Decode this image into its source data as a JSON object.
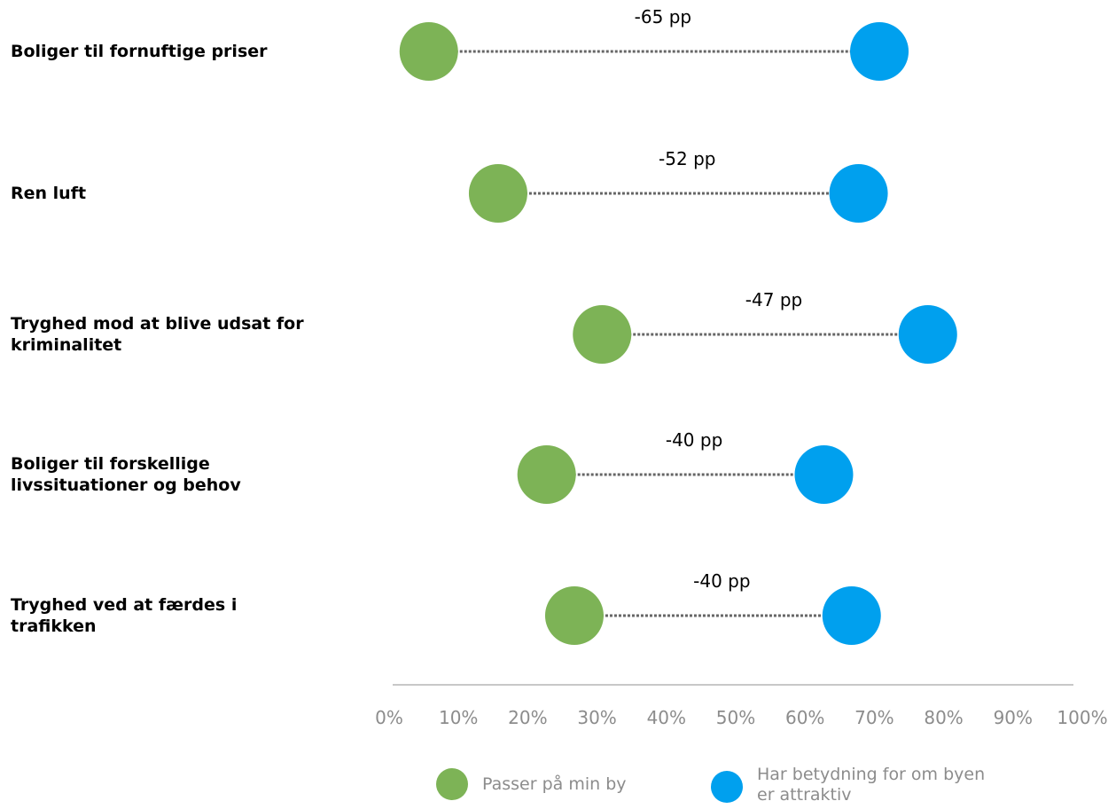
{
  "chart_data": {
    "type": "dumbbell",
    "categories": [
      "Boliger til fornuftige priser",
      "Ren luft",
      "Tryghed mod at blive udsat for kriminalitet",
      "Boliger til forskellige livssituationer og behov",
      "Tryghed ved at færdes i trafikken"
    ],
    "series": [
      {
        "name": "Passer på min by",
        "color": "#7db356",
        "values": [
          7,
          17,
          32,
          24,
          28
        ]
      },
      {
        "name": "Har betydning for om byen er attraktiv",
        "color": "#00a0ee",
        "values": [
          72,
          69,
          79,
          64,
          68
        ]
      }
    ],
    "gap_labels": [
      "-65 pp",
      "-52 pp",
      "-47 pp",
      "-40 pp",
      "-40 pp"
    ],
    "x_ticks": [
      "0%",
      "10%",
      "20%",
      "30%",
      "40%",
      "50%",
      "60%",
      "70%",
      "80%",
      "90%",
      "100%"
    ],
    "xlim": [
      0,
      100
    ],
    "legend_position": "bottom",
    "grid": false
  },
  "legend": {
    "item1": "Passer på min by",
    "item2": "Har betydning for om byen er attraktiv"
  }
}
